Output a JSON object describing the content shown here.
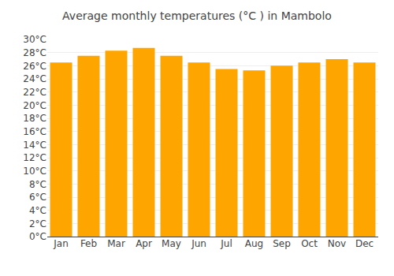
{
  "chart_data": {
    "type": "bar",
    "title": "Average monthly temperatures (°C ) in Mambolo",
    "categories": [
      "Jan",
      "Feb",
      "Mar",
      "Apr",
      "May",
      "Jun",
      "Jul",
      "Aug",
      "Sep",
      "Oct",
      "Nov",
      "Dec"
    ],
    "values": [
      26.5,
      27.5,
      28.3,
      28.7,
      27.5,
      26.5,
      25.5,
      25.3,
      26.0,
      26.5,
      27.0,
      26.5
    ],
    "color": "#FFA500",
    "ylim": [
      0,
      30
    ],
    "yticks": [
      {
        "value": 0,
        "label": "0°C"
      },
      {
        "value": 2,
        "label": "2°C"
      },
      {
        "value": 4,
        "label": "4°C"
      },
      {
        "value": 6,
        "label": "6°C"
      },
      {
        "value": 8,
        "label": "8°C"
      },
      {
        "value": 10,
        "label": "10°C"
      },
      {
        "value": 12,
        "label": "12°C"
      },
      {
        "value": 14,
        "label": "14°C"
      },
      {
        "value": 16,
        "label": "16°C"
      },
      {
        "value": 18,
        "label": "18°C"
      },
      {
        "value": 20,
        "label": "20°C"
      },
      {
        "value": 22,
        "label": "22°C"
      },
      {
        "value": 24,
        "label": "24°C"
      },
      {
        "value": 26,
        "label": "26°C"
      },
      {
        "value": 28,
        "label": "28°C"
      },
      {
        "value": 30,
        "label": "30°C"
      }
    ],
    "grid": true
  }
}
